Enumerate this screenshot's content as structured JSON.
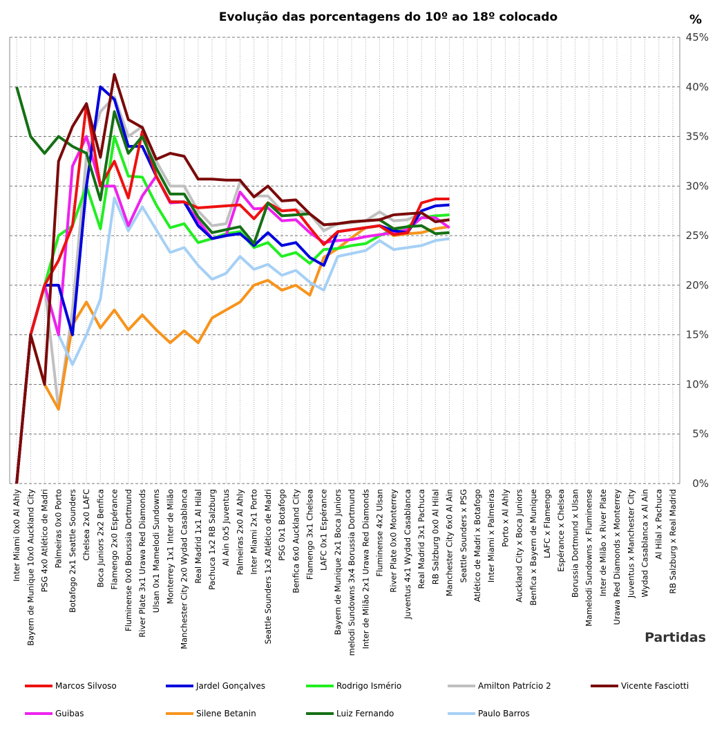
{
  "chart_data": {
    "type": "line",
    "title": "Evolução das porcentagens do 10º ao 18º colocado",
    "y_label": "%",
    "x_label": "Partidas",
    "categories": [
      "Inter Miami 0x0 Al Ahly",
      "Bayern de Munique 10x0 Auckland City",
      "PSG 4x0 Atlético de Madri",
      "Palmeiras 0x0 Porto",
      "Botafogo 2x1 Seattle Sounders",
      "Chelsea 2x0 LAFC",
      "Boca Juniors 2x2 Benfica",
      "Flamengo 2x0 Espérance",
      "Fluminense 0x0 Borussia Dortmund",
      "River Plate 3x1 Urawa Red Diamonds",
      "Ulsan 0x1 Mamelodi Sundowns",
      "Monterrey 1x1 Inter de Milão",
      "Manchester City 2x0 Wydad Casablanca",
      "Real Madrid 1x1 Al Hilal",
      "Pachuca 1x2 RB Salzburg",
      "Al Ain 0x5 Juventus",
      "Palmeiras 2x0 Al Ahly",
      "Inter Miami 2x1 Porto",
      "Seattle Sounders 1x3 Atlético de Madri",
      "PSG 0x1 Botafogo",
      "Benfica 6x0 Auckland City",
      "Flamengo 3x1 Chelsea",
      "LAFC 0x1 Espérance",
      "Bayern de Munique 2x1 Boca Juniors",
      "melodi Sundowns 3x4 Borussia Dortmund",
      "Inter de Milão 2x1 Urawa Red Diamonds",
      "Fluminense 4x2 Ulsan",
      "River Plate 0x0 Monterrey",
      "Juventus 4x1 Wydad Casablanca",
      "Real Madrid 3x1 Pachuca",
      "RB Salzburg 0x0 Al Hilal",
      "Manchester City 6x0 Al Ain",
      "Seattle Sounders x PSG",
      "Atlético de Madri x Botafogo",
      "Inter Miami x Palmeiras",
      "Porto x Al Ahly",
      "Auckland City x Boca Juniors",
      "Benfica x Bayern de Munique",
      "LAFC x Flamengo",
      "Espérance x Chelsea",
      "Borussia Dortmund x Ulsan",
      "Mamelodi Sundowns x Fluminense",
      "Inter de Milão x River Plate",
      "Urawa Red Diamonds x Monterrey",
      "Juventus x Manchester City",
      "Wydad Casablanca x Al Ain",
      "Al Hilal x Pachuca",
      "RB Salzburg x Real Madrid"
    ],
    "series": [
      {
        "name": "Amilton Patrício 2",
        "color": "#c0c0c0",
        "values": [
          0,
          15,
          20,
          7.5,
          17.5,
          33,
          37.5,
          39,
          35,
          36,
          32.5,
          30,
          30,
          27.5,
          26,
          26.2,
          30.4,
          29,
          29,
          27.5,
          27.6,
          27.2,
          25.5,
          26.2,
          26.3,
          26.5,
          27.4,
          26.5,
          26.6,
          27.3,
          26.5,
          26.6,
          null,
          null,
          null,
          null,
          null,
          null,
          null,
          null,
          null,
          null,
          null,
          null,
          null,
          null,
          null,
          null
        ]
      },
      {
        "name": "Silene Betanin",
        "color": "#f7941d",
        "values": [
          0,
          15,
          10,
          7.5,
          16,
          18.3,
          15.7,
          17.5,
          15.5,
          17,
          15.5,
          14.2,
          15.4,
          14.2,
          16.7,
          17.5,
          18.3,
          20,
          20.5,
          19.5,
          20,
          19,
          22.8,
          23.7,
          24.8,
          25.8,
          26,
          25,
          25.2,
          25.3,
          25.7,
          25.9,
          null,
          null,
          null,
          null,
          null,
          null,
          null,
          null,
          null,
          null,
          null,
          null,
          null,
          null,
          null,
          null
        ]
      },
      {
        "name": "Paulo Barros",
        "color": "#a6d0f5",
        "values": [
          0,
          15,
          20,
          15,
          12,
          15,
          18.6,
          28.8,
          25.5,
          27.9,
          25.6,
          23.3,
          23.8,
          22,
          20.6,
          21.2,
          22.9,
          21.6,
          22.1,
          21,
          21.5,
          20.3,
          19.5,
          22.9,
          23.2,
          23.5,
          24.5,
          23.6,
          23.8,
          24,
          24.5,
          24.7,
          null,
          null,
          null,
          null,
          null,
          null,
          null,
          null,
          null,
          null,
          null,
          null,
          null,
          null,
          null,
          null
        ]
      },
      {
        "name": "Rodrigo Ismério",
        "color": "#22ee22",
        "values": [
          0,
          15,
          20,
          25,
          26,
          30,
          25.7,
          35,
          31,
          30.9,
          28.1,
          25.8,
          26.2,
          24.3,
          24.7,
          25.2,
          25.4,
          23.8,
          24.3,
          22.9,
          23.3,
          22.2,
          23.6,
          23.7,
          24,
          24.2,
          25,
          25.6,
          25.9,
          26.8,
          27,
          27.1,
          null,
          null,
          null,
          null,
          null,
          null,
          null,
          null,
          null,
          null,
          null,
          null,
          null,
          null,
          null,
          null
        ]
      },
      {
        "name": "Guibas",
        "color": "#ee22ee",
        "values": [
          0,
          15,
          20,
          15,
          32,
          35,
          30,
          30,
          26,
          29,
          31,
          28.3,
          28.4,
          26.5,
          24.7,
          25,
          29.4,
          27.7,
          27.8,
          26.5,
          26.6,
          25.3,
          24.3,
          24.5,
          24.6,
          24.9,
          25.1,
          25.3,
          25.6,
          26.8,
          26.8,
          25.8,
          null,
          null,
          null,
          null,
          null,
          null,
          null,
          null,
          null,
          null,
          null,
          null,
          null,
          null,
          null,
          null
        ]
      },
      {
        "name": "Jardel Gonçalves",
        "color": "#0000dd",
        "values": [
          0,
          15,
          20,
          20,
          15,
          30,
          40,
          38.75,
          34,
          34,
          31,
          28.4,
          28.4,
          26,
          24.7,
          25,
          25.2,
          24,
          25.3,
          24,
          24.3,
          22.8,
          22,
          25.4,
          25.6,
          25.8,
          26,
          25.5,
          25.3,
          27.5,
          28,
          28.1,
          null,
          null,
          null,
          null,
          null,
          null,
          null,
          null,
          null,
          null,
          null,
          null,
          null,
          null,
          null,
          null
        ]
      },
      {
        "name": "Marcos Silvoso",
        "color": "#ee1111",
        "values": [
          0,
          15,
          20,
          22.5,
          26,
          38.3,
          30,
          32.5,
          28.8,
          35.5,
          31,
          28.4,
          28.4,
          27.8,
          27.9,
          28,
          28.1,
          26.7,
          28.3,
          27.5,
          27.6,
          25.8,
          24.1,
          25.4,
          25.6,
          25.8,
          26,
          25.1,
          25.3,
          28.3,
          28.7,
          28.7,
          null,
          null,
          null,
          null,
          null,
          null,
          null,
          null,
          null,
          null,
          null,
          null,
          null,
          null,
          null,
          null
        ]
      },
      {
        "name": "Luiz Fernando",
        "color": "#157015",
        "values": [
          40,
          35,
          33.3,
          35,
          34,
          33.3,
          28.6,
          37.5,
          33.3,
          35,
          31.8,
          29.2,
          29.2,
          26.9,
          25.3,
          25.6,
          25.9,
          24.2,
          28.3,
          27,
          27.1,
          27.2,
          26.1,
          26.2,
          26.4,
          26.5,
          26.6,
          25.7,
          25.9,
          26,
          25.2,
          25.3,
          null,
          null,
          null,
          null,
          null,
          null,
          null,
          null,
          null,
          null,
          null,
          null,
          null,
          null,
          null,
          null
        ]
      },
      {
        "name": "Vicente Fasciotti",
        "color": "#7a0a0a",
        "values": [
          0,
          15,
          10,
          32.5,
          36,
          38.3,
          32.9,
          41.25,
          36.7,
          35.9,
          32.7,
          33.3,
          33,
          30.7,
          30.7,
          30.6,
          30.6,
          28.9,
          30,
          28.5,
          28.6,
          27.2,
          26.1,
          26.2,
          26.4,
          26.5,
          26.6,
          27.1,
          27.2,
          27.3,
          26.4,
          26.6,
          null,
          null,
          null,
          null,
          null,
          null,
          null,
          null,
          null,
          null,
          null,
          null,
          null,
          null,
          null,
          null
        ]
      }
    ],
    "legend_order": [
      6,
      5,
      3,
      0,
      8,
      4,
      1,
      7,
      2
    ],
    "ylim": [
      0,
      45
    ],
    "yticks": [
      {
        "value": 0,
        "label": "0%"
      },
      {
        "value": 5,
        "label": "5%"
      },
      {
        "value": 10,
        "label": "10%"
      },
      {
        "value": 15,
        "label": "15%"
      },
      {
        "value": 20,
        "label": "20%"
      },
      {
        "value": 25,
        "label": "25%"
      },
      {
        "value": 30,
        "label": "30%"
      },
      {
        "value": 35,
        "label": "35%"
      },
      {
        "value": 40,
        "label": "40%"
      },
      {
        "value": 45,
        "label": "45%"
      }
    ],
    "grid": true
  }
}
